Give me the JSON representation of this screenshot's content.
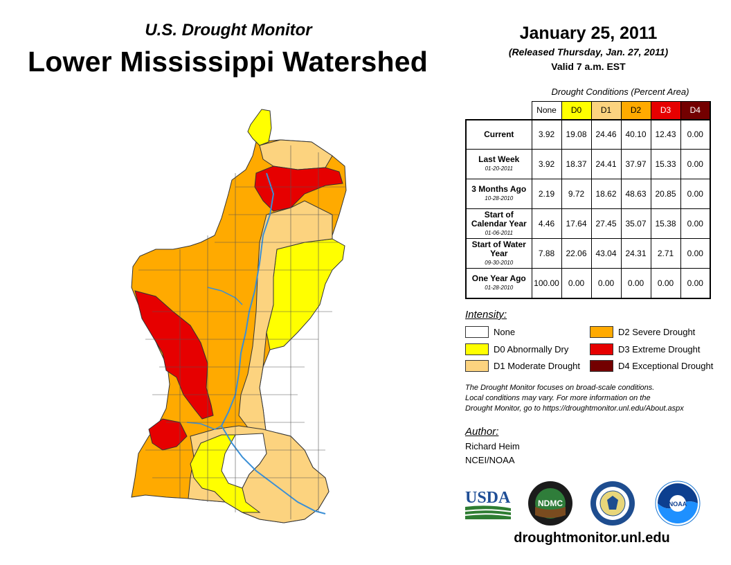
{
  "header": {
    "subtitle": "U.S. Drought Monitor",
    "title": "Lower Mississippi Watershed",
    "date": "January 25, 2011",
    "released": "(Released Thursday, Jan. 27, 2011)",
    "valid": "Valid 7 a.m. EST"
  },
  "table": {
    "caption": "Drought Conditions (Percent Area)",
    "columns": [
      "None",
      "D0",
      "D1",
      "D2",
      "D3",
      "D4"
    ],
    "rows": [
      {
        "label": "Current",
        "sub": "",
        "values": [
          "3.92",
          "19.08",
          "24.46",
          "40.10",
          "12.43",
          "0.00"
        ]
      },
      {
        "label": "Last Week",
        "sub": "01-20-2011",
        "values": [
          "3.92",
          "18.37",
          "24.41",
          "37.97",
          "15.33",
          "0.00"
        ]
      },
      {
        "label": "3 Months Ago",
        "sub": "10-28-2010",
        "values": [
          "2.19",
          "9.72",
          "18.62",
          "48.63",
          "20.85",
          "0.00"
        ]
      },
      {
        "label": "Start of Calendar Year",
        "sub": "01-06-2011",
        "values": [
          "4.46",
          "17.64",
          "27.45",
          "35.07",
          "15.38",
          "0.00"
        ]
      },
      {
        "label": "Start of Water Year",
        "sub": "09-30-2010",
        "values": [
          "7.88",
          "22.06",
          "43.04",
          "24.31",
          "2.71",
          "0.00"
        ]
      },
      {
        "label": "One Year Ago",
        "sub": "01-28-2010",
        "values": [
          "100.00",
          "0.00",
          "0.00",
          "0.00",
          "0.00",
          "0.00"
        ]
      }
    ]
  },
  "legend": {
    "title": "Intensity:",
    "items": [
      {
        "label": "None",
        "color": "#ffffff"
      },
      {
        "label": "D0 Abnormally Dry",
        "color": "#ffff00"
      },
      {
        "label": "D1 Moderate Drought",
        "color": "#fcd37f"
      },
      {
        "label": "D2 Severe Drought",
        "color": "#ffaa00"
      },
      {
        "label": "D3 Extreme Drought",
        "color": "#e60000"
      },
      {
        "label": "D4 Exceptional Drought",
        "color": "#730000"
      }
    ]
  },
  "note": {
    "line1": "The Drought Monitor focuses on broad-scale conditions.",
    "line2": "Local conditions may vary. For more information on the",
    "line3": "Drought Monitor, go to https://droughtmonitor.unl.edu/About.aspx"
  },
  "author": {
    "title": "Author:",
    "name": "Richard Heim",
    "org": "NCEI/NOAA"
  },
  "logos": {
    "usda": "USDA",
    "ndmc": "NDMC",
    "noaa": "NOAA"
  },
  "website": "droughtmonitor.unl.edu",
  "colors": {
    "none": "#ffffff",
    "d0": "#ffff00",
    "d1": "#fcd37f",
    "d2": "#ffaa00",
    "d3": "#e60000",
    "d4": "#730000",
    "river": "#3a8fd6"
  }
}
